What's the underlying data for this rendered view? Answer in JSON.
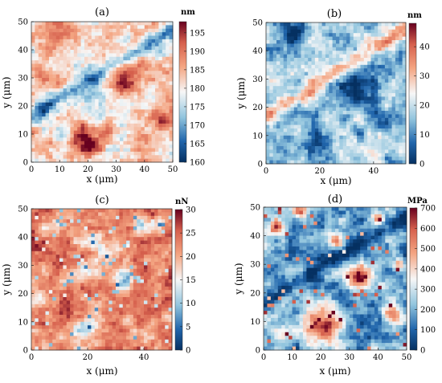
{
  "colors": {
    "low": "#1a4f93",
    "mid": "#f7f7f7",
    "high": "#b2182b"
  },
  "panels": [
    {
      "label": "(a)",
      "unit": "nm",
      "x_label": "x (μm)",
      "y_label": "y (μm)",
      "x_ticks": [
        "0",
        "10",
        "20",
        "30",
        "40",
        "50"
      ],
      "y_ticks": [
        "0",
        "10",
        "20",
        "30",
        "40",
        "50"
      ],
      "colorbar_ticks": [
        "160",
        "165",
        "170",
        "175",
        "180",
        "185",
        "190",
        "195"
      ],
      "color_min": 160,
      "color_max": 198,
      "base": 0.56,
      "features": "height"
    },
    {
      "label": "(b)",
      "unit": "nm",
      "x_label": "x (μm)",
      "y_label": "y (μm)",
      "x_ticks": [
        "0",
        "20",
        "40"
      ],
      "y_ticks": [
        "0",
        "10",
        "20",
        "30",
        "40",
        "50"
      ],
      "colorbar_ticks": [
        "0",
        "10",
        "20",
        "30",
        "40"
      ],
      "color_min": 0,
      "color_max": 48,
      "base": 0.34,
      "features": "deformation"
    },
    {
      "label": "(c)",
      "unit": "nN",
      "x_label": "x (μm)",
      "y_label": "y (μm)",
      "x_ticks": [
        "0",
        "20",
        "40"
      ],
      "y_ticks": [
        "0",
        "10",
        "20",
        "30",
        "40",
        "50"
      ],
      "colorbar_ticks": [
        "0",
        "5",
        "10",
        "15",
        "20",
        "25",
        "30"
      ],
      "color_min": 0,
      "color_max": 30,
      "base": 0.77,
      "features": "adhesion"
    },
    {
      "label": "(d)",
      "unit": "MPa",
      "x_label": "x (μm)",
      "y_label": "y (μm)",
      "x_ticks": [
        "0",
        "10",
        "20",
        "30",
        "40",
        "50"
      ],
      "y_ticks": [
        "0",
        "10",
        "20",
        "30",
        "40",
        "50"
      ],
      "colorbar_ticks": [
        "0",
        "100",
        "200",
        "300",
        "400",
        "500",
        "600",
        "700"
      ],
      "color_min": 0,
      "color_max": 700,
      "base": 0.27,
      "features": "modulus"
    }
  ]
}
